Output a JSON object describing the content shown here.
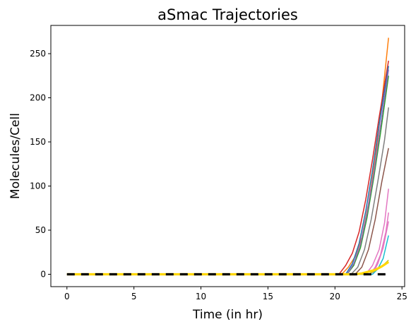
{
  "chart_data": {
    "type": "line",
    "title": "aSmac Trajectories",
    "xlabel": "Time (in hr)",
    "ylabel": "Molecules/Cell",
    "xlim": [
      -1.2,
      25.2
    ],
    "ylim": [
      -14,
      282
    ],
    "xticks": [
      0,
      5,
      10,
      15,
      20,
      25
    ],
    "yticks": [
      0,
      50,
      100,
      150,
      200,
      250
    ],
    "grid": false,
    "legend": "none",
    "series": [
      {
        "color": "#ff7f0e",
        "width": 1.5,
        "dash": "",
        "x": [
          0,
          20.5,
          21,
          21.5,
          22,
          22.5,
          23,
          23.5,
          24
        ],
        "y": [
          0,
          0,
          8,
          20,
          42,
          80,
          130,
          195,
          268
        ]
      },
      {
        "color": "#d62728",
        "width": 1.5,
        "dash": "",
        "x": [
          0,
          20.3,
          20.8,
          21.3,
          21.8,
          22.3,
          22.8,
          23.3,
          24
        ],
        "y": [
          0,
          0,
          10,
          24,
          48,
          85,
          130,
          178,
          242
        ]
      },
      {
        "color": "#1f77b4",
        "width": 1.5,
        "dash": "",
        "x": [
          0,
          20.8,
          21.3,
          21.8,
          22.3,
          22.8,
          23.3,
          24
        ],
        "y": [
          0,
          0,
          12,
          35,
          72,
          118,
          170,
          236
        ]
      },
      {
        "color": "#2ca02c",
        "width": 1.5,
        "dash": "",
        "x": [
          0,
          20.9,
          21.4,
          21.9,
          22.4,
          22.9,
          23.4,
          24
        ],
        "y": [
          0,
          0,
          10,
          30,
          65,
          110,
          160,
          225
        ]
      },
      {
        "color": "#9467bd",
        "width": 1.5,
        "dash": "",
        "x": [
          0,
          20.9,
          21.4,
          21.9,
          22.4,
          22.9,
          23.4,
          24
        ],
        "y": [
          0,
          0,
          12,
          34,
          70,
          115,
          168,
          232
        ]
      },
      {
        "color": "#7f7f7f",
        "width": 1.5,
        "dash": "",
        "x": [
          0,
          21.2,
          21.7,
          22.2,
          22.7,
          23.2,
          23.7,
          24
        ],
        "y": [
          0,
          0,
          8,
          28,
          62,
          105,
          152,
          189
        ]
      },
      {
        "color": "#8c564b",
        "width": 1.5,
        "dash": "",
        "x": [
          0,
          21.5,
          22,
          22.5,
          23,
          23.5,
          24
        ],
        "y": [
          0,
          0,
          8,
          28,
          62,
          105,
          143
        ]
      },
      {
        "color": "#e377c2",
        "width": 1.5,
        "dash": "",
        "x": [
          0,
          22.3,
          22.8,
          23.3,
          23.7,
          24
        ],
        "y": [
          0,
          0,
          10,
          28,
          58,
          97
        ]
      },
      {
        "color": "#e377c2",
        "width": 1.5,
        "dash": "",
        "x": [
          0,
          22.6,
          23,
          23.4,
          23.8,
          24
        ],
        "y": [
          0,
          0,
          8,
          22,
          48,
          70
        ]
      },
      {
        "color": "#e377c2",
        "width": 1.5,
        "dash": "",
        "x": [
          0,
          22.8,
          23.2,
          23.6,
          24
        ],
        "y": [
          0,
          0,
          12,
          30,
          60
        ]
      },
      {
        "color": "#17becf",
        "width": 1.5,
        "dash": "",
        "x": [
          0,
          22.8,
          23.2,
          23.6,
          24
        ],
        "y": [
          0,
          0,
          6,
          18,
          44
        ]
      },
      {
        "color": "#bcbd22",
        "width": 1.5,
        "dash": "",
        "x": [
          0,
          22.5,
          23,
          23.5,
          24
        ],
        "y": [
          0,
          0,
          4,
          9,
          16
        ]
      },
      {
        "color": "#ffd700",
        "width": 3.2,
        "dash": "",
        "x": [
          0,
          21.5,
          22,
          22.5,
          23,
          23.5,
          24
        ],
        "y": [
          0,
          0,
          1,
          3,
          5,
          9,
          14
        ]
      },
      {
        "color": "#000000",
        "width": 3.2,
        "dash": "11 9",
        "x": [
          0,
          24
        ],
        "y": [
          0,
          0
        ]
      }
    ]
  }
}
